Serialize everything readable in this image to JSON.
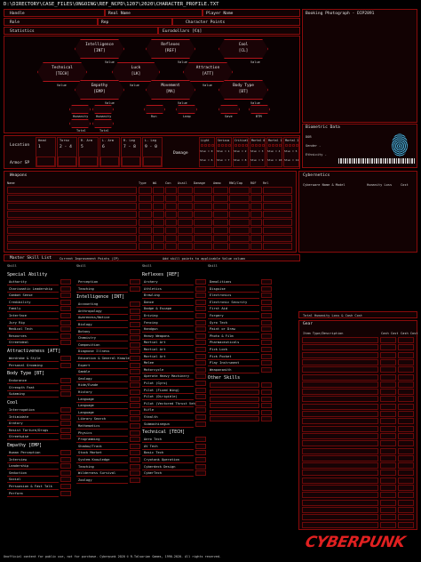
{
  "path": "D:\\DIRECTORY\\CASE_FILES\\ONGOING\\REF_NCPD\\1207\\2020\\CHARACTER_PROFILE.TXT",
  "header": {
    "handle": "Handle",
    "real_name": "Real Name",
    "player_name": "Player Name",
    "role": "Role",
    "rep": "Rep",
    "character_points": "Character Points",
    "statistics": "Statistics",
    "eurodollars": "Eurodollars [€$]",
    "booking_photo": "Booking Photograph - DIP2891",
    "biometric": "Biometric Data",
    "dob": "DOB",
    "gender": "Gender -",
    "ethnicity": "Ethnicity -"
  },
  "stats": [
    {
      "name": "Intelligence",
      "abbr": "[INT]",
      "value_label": "Value"
    },
    {
      "name": "Reflexes",
      "abbr": "[REF]",
      "value_label": "Value"
    },
    {
      "name": "Cool",
      "abbr": "[CL]",
      "value_label": "Value"
    },
    {
      "name": "Technical",
      "abbr": "[TECH]",
      "value_label": "Value"
    },
    {
      "name": "Luck",
      "abbr": "[LK]",
      "value_label": "Value"
    },
    {
      "name": "Attraction",
      "abbr": "[ATT]",
      "value_label": "Value"
    },
    {
      "name": "Empathy",
      "abbr": "[EMP]",
      "value_label": "Value"
    },
    {
      "name": "Movement",
      "abbr": "[MA]",
      "value_label": "Value"
    },
    {
      "name": "Body Type",
      "abbr": "[BT]",
      "value_label": "Value"
    }
  ],
  "substats": {
    "humanity": "Humanity",
    "total": "Total",
    "run": "Run",
    "leap": "Leap",
    "save": "Save",
    "btm": "BTM"
  },
  "location": {
    "label": "Location",
    "armor_sp": "Armor SP",
    "cols": [
      {
        "name": "Head",
        "range": "1"
      },
      {
        "name": "Torso",
        "range": "2 - 4"
      },
      {
        "name": "R. Arm",
        "range": "5"
      },
      {
        "name": "L. Arm",
        "range": "6"
      },
      {
        "name": "R. Leg",
        "range": "7 - 8"
      },
      {
        "name": "L. Leg",
        "range": "9 - 0"
      }
    ],
    "damage": "Damage",
    "wound_cols": [
      "Light",
      "Serious",
      "Critical",
      "Mortal 0",
      "Mortal 1",
      "Mortal 2"
    ],
    "stun_labels": [
      "Stun = 0",
      "Stun = 1",
      "Stun = 2",
      "Stun = 3",
      "Stun = 4",
      "Stun = 5"
    ],
    "stun_labels2": [
      "Stun = 6",
      "Stun = 7",
      "Stun = 8",
      "Stun = 9",
      "Stun = 10",
      "Stun = 11"
    ]
  },
  "weapons": {
    "title": "Weapons",
    "cols": [
      "Name",
      "Type",
      "WA",
      "Con",
      "Avail",
      "Damage",
      "Ammo",
      "RNG/Cap",
      "ROF",
      "Rel"
    ]
  },
  "cybernetics": {
    "title": "Cybernetics",
    "cols": [
      "Cyberware Name & Model",
      "Humanity Loss",
      "Cost"
    ]
  },
  "skills": {
    "title": "Master Skill List",
    "note1": "Current Improvement Points (IP)",
    "note2": "Add skill points to applicable Value column",
    "col_label": "Skill",
    "special_ability": "Special Ability",
    "special_list": [
      "Authority",
      "Charismatic Leadership",
      "Combat Sense",
      "Credibility",
      "Family",
      "Interface",
      "Jury Rig",
      "Medical Tech",
      "Resources",
      "Streetdeal"
    ],
    "attractiveness": "Attractiveness [ATT]",
    "att_list": [
      "Wardrobe & Style",
      "Personal Grooming"
    ],
    "body": "Body Type [BT]",
    "body_list": [
      "Endurance",
      "Strength Feat",
      "Swimming"
    ],
    "cool": "Cool",
    "cool_list": [
      "Interrogation",
      "Intimidate",
      "Oratory",
      "Resist Torture/Drugs",
      "Streetwise"
    ],
    "empathy": "Empathy [EMP]",
    "emp_list": [
      "Human Perception",
      "Interview",
      "Leadership",
      "Seduction",
      "Social",
      "Persuasion & Fast Talk",
      "Perform"
    ],
    "int_top": [
      "Perception",
      "Teaching"
    ],
    "intelligence": "Intelligence [INT]",
    "int_list": [
      "Accounting",
      "Anthropology",
      "Awareness/Notice",
      "Biology",
      "Botany",
      "Chemistry",
      "Composition",
      "Diagnose Illness",
      "Education & General Knowledge",
      "Expert",
      "Gamble",
      "Geology",
      "Hide/Evade",
      "History",
      "Language",
      "Language",
      "Language",
      "Library Search",
      "Mathematics",
      "Physics",
      "Programming",
      "Shadow/Track",
      "Stock Market",
      "System Knowledge",
      "Teaching",
      "Wilderness Survival",
      "Zoology"
    ],
    "reflexes": "Reflexes [REF]",
    "ref_list": [
      "Archery",
      "Athletics",
      "Brawling",
      "Dance",
      "Dodge & Escape",
      "Driving",
      "Fencing",
      "Handgun",
      "Heavy Weapons",
      "Martial Art",
      "Martial Art",
      "Martial Art",
      "Melee",
      "Motorcycle",
      "Operate Heavy Machinery",
      "Pilot (Gyro)",
      "Pilot (Fixed Wing)",
      "Pilot (Dirigible)",
      "Pilot (Vectored Thrust Vehicle)",
      "Rifle",
      "Stealth",
      "Submachinegun"
    ],
    "technical": "Technical [TECH]",
    "tech_list": [
      "Aero Tech",
      "AV Tech",
      "Basic Tech",
      "Cryotank Operation",
      "Cyberdeck Design",
      "CyberTech"
    ],
    "tech2_list": [
      "Demolitions",
      "Disguise",
      "Electronics",
      "Electronic Security",
      "First Aid",
      "Forgery",
      "Gyro Tech",
      "Paint or Draw",
      "Photo & Film",
      "Pharmaceuticals",
      "Pick Lock",
      "Pick Pocket",
      "Play Instrument",
      "Weaponsmith"
    ],
    "other": "Other Skills",
    "other_count": 6
  },
  "gear": {
    "humanity_loss_total": "Total Humanity Loss & Cash Cost",
    "gear": "Gear",
    "item_type": "Item Type/Description",
    "cost": "Cash Cost",
    "cost2": "Cash Cost"
  },
  "footer": {
    "disclaimer": "Unofficial content for public use, not for purchase. Cyberpunk 2020 © R.Talsorian Games, 1990-2020. All rights reserved.",
    "logo": "CYBERPUNK"
  }
}
